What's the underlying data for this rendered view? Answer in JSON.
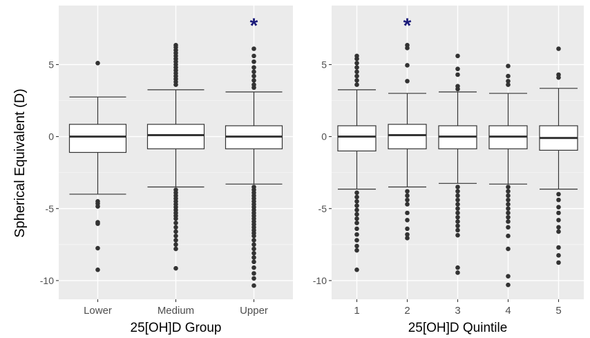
{
  "ylabel": "Spherical Equivalent (D)",
  "chart_data": [
    {
      "type": "box",
      "xlabel": "25[OH]D Group",
      "ylabel": "Spherical Equivalent (D)",
      "ylim": [
        -11.3,
        9.1
      ],
      "yticks": [
        5,
        0,
        -5,
        -10
      ],
      "yticklabels": [
        "5",
        "0",
        "-5",
        "-10"
      ],
      "grid": true,
      "categories": [
        "Lower",
        "Medium",
        "Upper"
      ],
      "boxes": [
        {
          "category": "Lower",
          "q1": -1.1,
          "median": 0.0,
          "q3": 0.85,
          "whisker_low": -4.0,
          "whisker_high": 2.75,
          "outliers": [
            5.1,
            -4.5,
            -4.65,
            -4.85,
            -5.95,
            -6.05,
            -7.75,
            -9.25
          ]
        },
        {
          "category": "Medium",
          "q1": -0.85,
          "median": 0.1,
          "q3": 0.85,
          "whisker_low": -3.5,
          "whisker_high": 3.25,
          "outliers": [
            6.35,
            6.2,
            6.0,
            5.8,
            5.6,
            5.4,
            5.2,
            5.0,
            4.8,
            4.6,
            4.4,
            4.2,
            4.0,
            3.8,
            3.6,
            -3.7,
            -3.9,
            -4.1,
            -4.3,
            -4.5,
            -4.7,
            -4.9,
            -5.1,
            -5.3,
            -5.5,
            -5.7,
            -6.0,
            -6.3,
            -6.6,
            -6.9,
            -7.2,
            -7.5,
            -7.8,
            -9.15
          ]
        },
        {
          "category": "Upper",
          "q1": -0.85,
          "median": 0.0,
          "q3": 0.75,
          "whisker_low": -3.3,
          "whisker_high": 3.1,
          "outliers": [
            6.1,
            5.6,
            5.2,
            4.8,
            4.5,
            4.2,
            3.9,
            3.6,
            3.4,
            -3.5,
            -3.7,
            -3.9,
            -4.1,
            -4.3,
            -4.5,
            -4.7,
            -4.9,
            -5.1,
            -5.3,
            -5.5,
            -5.7,
            -5.9,
            -6.1,
            -6.3,
            -6.5,
            -6.7,
            -6.9,
            -7.2,
            -7.5,
            -7.8,
            -8.1,
            -8.4,
            -8.7,
            -9.1,
            -9.5,
            -9.85,
            -10.35
          ]
        }
      ],
      "annotations": [
        {
          "text": "*",
          "category": "Upper",
          "y": 8.1,
          "color": "#1a1a7a"
        }
      ]
    },
    {
      "type": "box",
      "xlabel": "25[OH]D Quintile",
      "ylabel": "",
      "ylim": [
        -11.3,
        9.1
      ],
      "yticks": [
        5,
        0,
        -5,
        -10
      ],
      "yticklabels": [
        "5",
        "0",
        "-5",
        "-10"
      ],
      "grid": true,
      "categories": [
        "1",
        "2",
        "3",
        "4",
        "5"
      ],
      "boxes": [
        {
          "category": "1",
          "q1": -1.0,
          "median": 0.0,
          "q3": 0.75,
          "whisker_low": -3.65,
          "whisker_high": 3.25,
          "outliers": [
            5.6,
            5.4,
            5.1,
            4.8,
            4.5,
            4.2,
            3.9,
            3.6,
            -3.9,
            -4.2,
            -4.5,
            -4.8,
            -5.1,
            -5.4,
            -5.7,
            -6.0,
            -6.4,
            -6.8,
            -7.2,
            -7.6,
            -7.9,
            -9.25
          ]
        },
        {
          "category": "2",
          "q1": -0.85,
          "median": 0.1,
          "q3": 0.85,
          "whisker_low": -3.5,
          "whisker_high": 3.0,
          "outliers": [
            6.35,
            6.15,
            4.95,
            3.85,
            -3.8,
            -4.1,
            -4.4,
            -4.7,
            -5.3,
            -5.8,
            -6.4,
            -6.8,
            -7.05
          ]
        },
        {
          "category": "3",
          "q1": -0.85,
          "median": 0.0,
          "q3": 0.75,
          "whisker_low": -3.25,
          "whisker_high": 3.1,
          "outliers": [
            5.6,
            4.7,
            4.3,
            3.5,
            3.3,
            -3.5,
            -3.8,
            -4.1,
            -4.4,
            -4.7,
            -5.0,
            -5.3,
            -5.6,
            -5.9,
            -6.2,
            -6.5,
            -6.85,
            -9.1,
            -9.45
          ]
        },
        {
          "category": "4",
          "q1": -0.85,
          "median": 0.0,
          "q3": 0.75,
          "whisker_low": -3.3,
          "whisker_high": 3.0,
          "outliers": [
            4.9,
            4.2,
            3.85,
            3.6,
            -3.5,
            -3.8,
            -4.1,
            -4.4,
            -4.7,
            -5.0,
            -5.3,
            -5.6,
            -5.9,
            -6.3,
            -6.9,
            -7.8,
            -9.7,
            -10.3
          ]
        },
        {
          "category": "5",
          "q1": -0.95,
          "median": -0.1,
          "q3": 0.75,
          "whisker_low": -3.65,
          "whisker_high": 3.35,
          "outliers": [
            6.1,
            4.3,
            4.1,
            -4.0,
            -4.4,
            -4.9,
            -5.3,
            -5.8,
            -6.3,
            -6.6,
            -7.7,
            -8.25,
            -8.75
          ]
        }
      ],
      "annotations": [
        {
          "text": "*",
          "category": "2",
          "y": 8.1,
          "color": "#1a1a7a"
        }
      ]
    }
  ]
}
